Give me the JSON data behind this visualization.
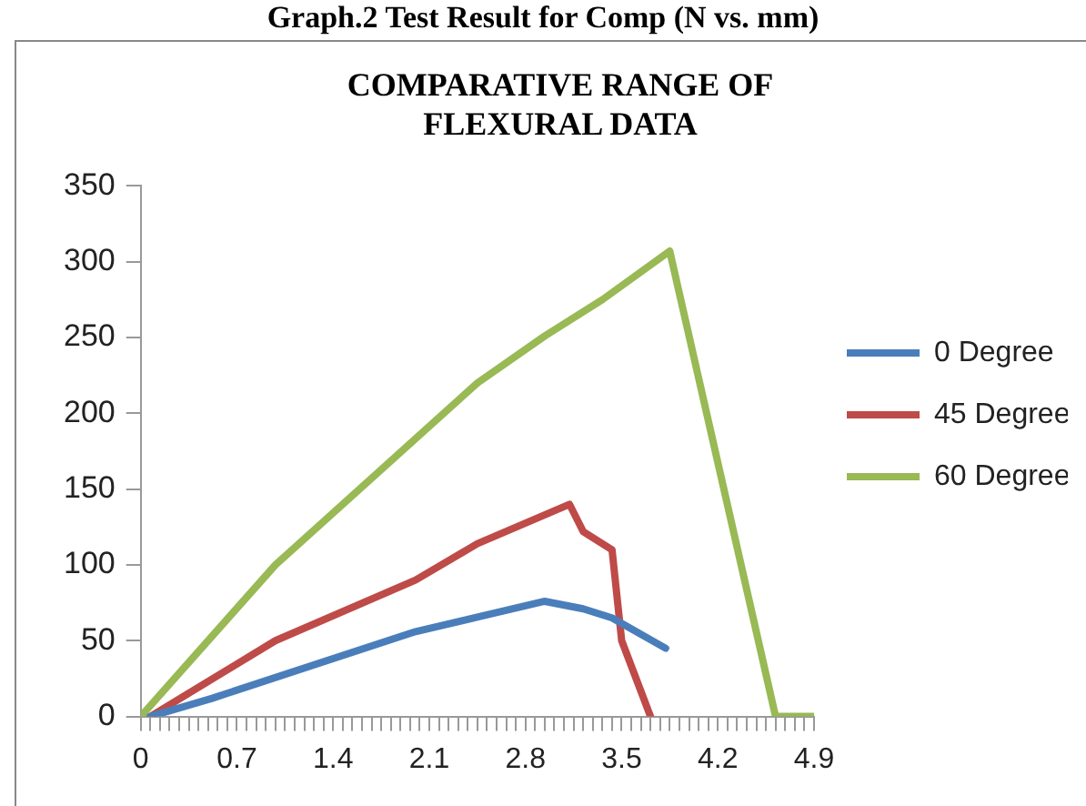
{
  "chart_data": {
    "type": "line",
    "title": "COMPARATIVE RANGE OF FLEXURAL DATA",
    "annotations": [
      "Graph.2 Test Result for Comp (N vs. mm)"
    ],
    "xlim": [
      0,
      4.9
    ],
    "xticks": [
      0,
      {
        "value": 0.07,
        "label": null
      },
      {
        "value": 0.14,
        "label": null
      },
      {
        "value": 0.21,
        "label": null
      },
      {
        "value": 0.28,
        "label": null
      },
      {
        "value": 0.35,
        "label": null
      },
      {
        "value": 0.42,
        "label": null
      },
      {
        "value": 0.49,
        "label": null
      },
      {
        "value": 0.56,
        "label": null
      },
      {
        "value": 0.63,
        "label": null
      },
      0.7,
      {
        "value": 0.77,
        "label": null
      },
      {
        "value": 0.84,
        "label": null
      },
      {
        "value": 0.91,
        "label": null
      },
      {
        "value": 0.98,
        "label": null
      },
      {
        "value": 1.05,
        "label": null
      },
      {
        "value": 1.12,
        "label": null
      },
      {
        "value": 1.19,
        "label": null
      },
      {
        "value": 1.26,
        "label": null
      },
      {
        "value": 1.33,
        "label": null
      },
      1.4,
      {
        "value": 1.47,
        "label": null
      },
      {
        "value": 1.54,
        "label": null
      },
      {
        "value": 1.61,
        "label": null
      },
      {
        "value": 1.68,
        "label": null
      },
      {
        "value": 1.75,
        "label": null
      },
      {
        "value": 1.82,
        "label": null
      },
      {
        "value": 1.89,
        "label": null
      },
      {
        "value": 1.96,
        "label": null
      },
      {
        "value": 2.03,
        "label": null
      },
      2.1,
      {
        "value": 2.17,
        "label": null
      },
      {
        "value": 2.24,
        "label": null
      },
      {
        "value": 2.31,
        "label": null
      },
      {
        "value": 2.38,
        "label": null
      },
      {
        "value": 2.45,
        "label": null
      },
      {
        "value": 2.52,
        "label": null
      },
      {
        "value": 2.59,
        "label": null
      },
      {
        "value": 2.66,
        "label": null
      },
      {
        "value": 2.73,
        "label": null
      },
      2.8,
      {
        "value": 2.87,
        "label": null
      },
      {
        "value": 2.94,
        "label": null
      },
      {
        "value": 3.01,
        "label": null
      },
      {
        "value": 3.08,
        "label": null
      },
      {
        "value": 3.15,
        "label": null
      },
      {
        "value": 3.22,
        "label": null
      },
      {
        "value": 3.29,
        "label": null
      },
      {
        "value": 3.36,
        "label": null
      },
      {
        "value": 3.43,
        "label": null
      },
      3.5,
      {
        "value": 3.57,
        "label": null
      },
      {
        "value": 3.64,
        "label": null
      },
      {
        "value": 3.71,
        "label": null
      },
      {
        "value": 3.78,
        "label": null
      },
      {
        "value": 3.85,
        "label": null
      },
      {
        "value": 3.92,
        "label": null
      },
      {
        "value": 3.99,
        "label": null
      },
      {
        "value": 4.06,
        "label": null
      },
      {
        "value": 4.13,
        "label": null
      },
      4.2,
      {
        "value": 4.27,
        "label": null
      },
      {
        "value": 4.34,
        "label": null
      },
      {
        "value": 4.41,
        "label": null
      },
      {
        "value": 4.48,
        "label": null
      },
      {
        "value": 4.55,
        "label": null
      },
      {
        "value": 4.62,
        "label": null
      },
      {
        "value": 4.69,
        "label": null
      },
      {
        "value": 4.76,
        "label": null
      },
      {
        "value": 4.83,
        "label": null
      },
      4.9
    ],
    "ylim": [
      0,
      350
    ],
    "yticks": [
      0,
      50,
      100,
      150,
      200,
      250,
      300,
      350
    ],
    "grid": false,
    "legend": "right",
    "marker": "none",
    "line_style": "solid",
    "series": [
      {
        "name": "0 Degree",
        "color": "#4a7ebb",
        "x": [
          0.07,
          0.52,
          2.0,
          2.47,
          2.94,
          3.22,
          3.43,
          3.82
        ],
        "values": [
          0,
          12,
          56,
          66,
          76,
          71,
          65,
          45
        ]
      },
      {
        "name": "45 Degree",
        "color": "#be4b48",
        "x": [
          0.07,
          0.98,
          2.0,
          2.45,
          3.12,
          3.22,
          3.43,
          3.5,
          3.71
        ],
        "values": [
          0,
          50,
          90,
          114,
          140,
          122,
          110,
          50,
          0
        ]
      },
      {
        "name": "60 Degree",
        "color": "#98b954",
        "x": [
          0,
          0.98,
          2.45,
          2.94,
          3.36,
          3.85,
          4.62,
          4.9
        ],
        "values": [
          0,
          100,
          220,
          251,
          275,
          307,
          0,
          0
        ]
      }
    ]
  }
}
